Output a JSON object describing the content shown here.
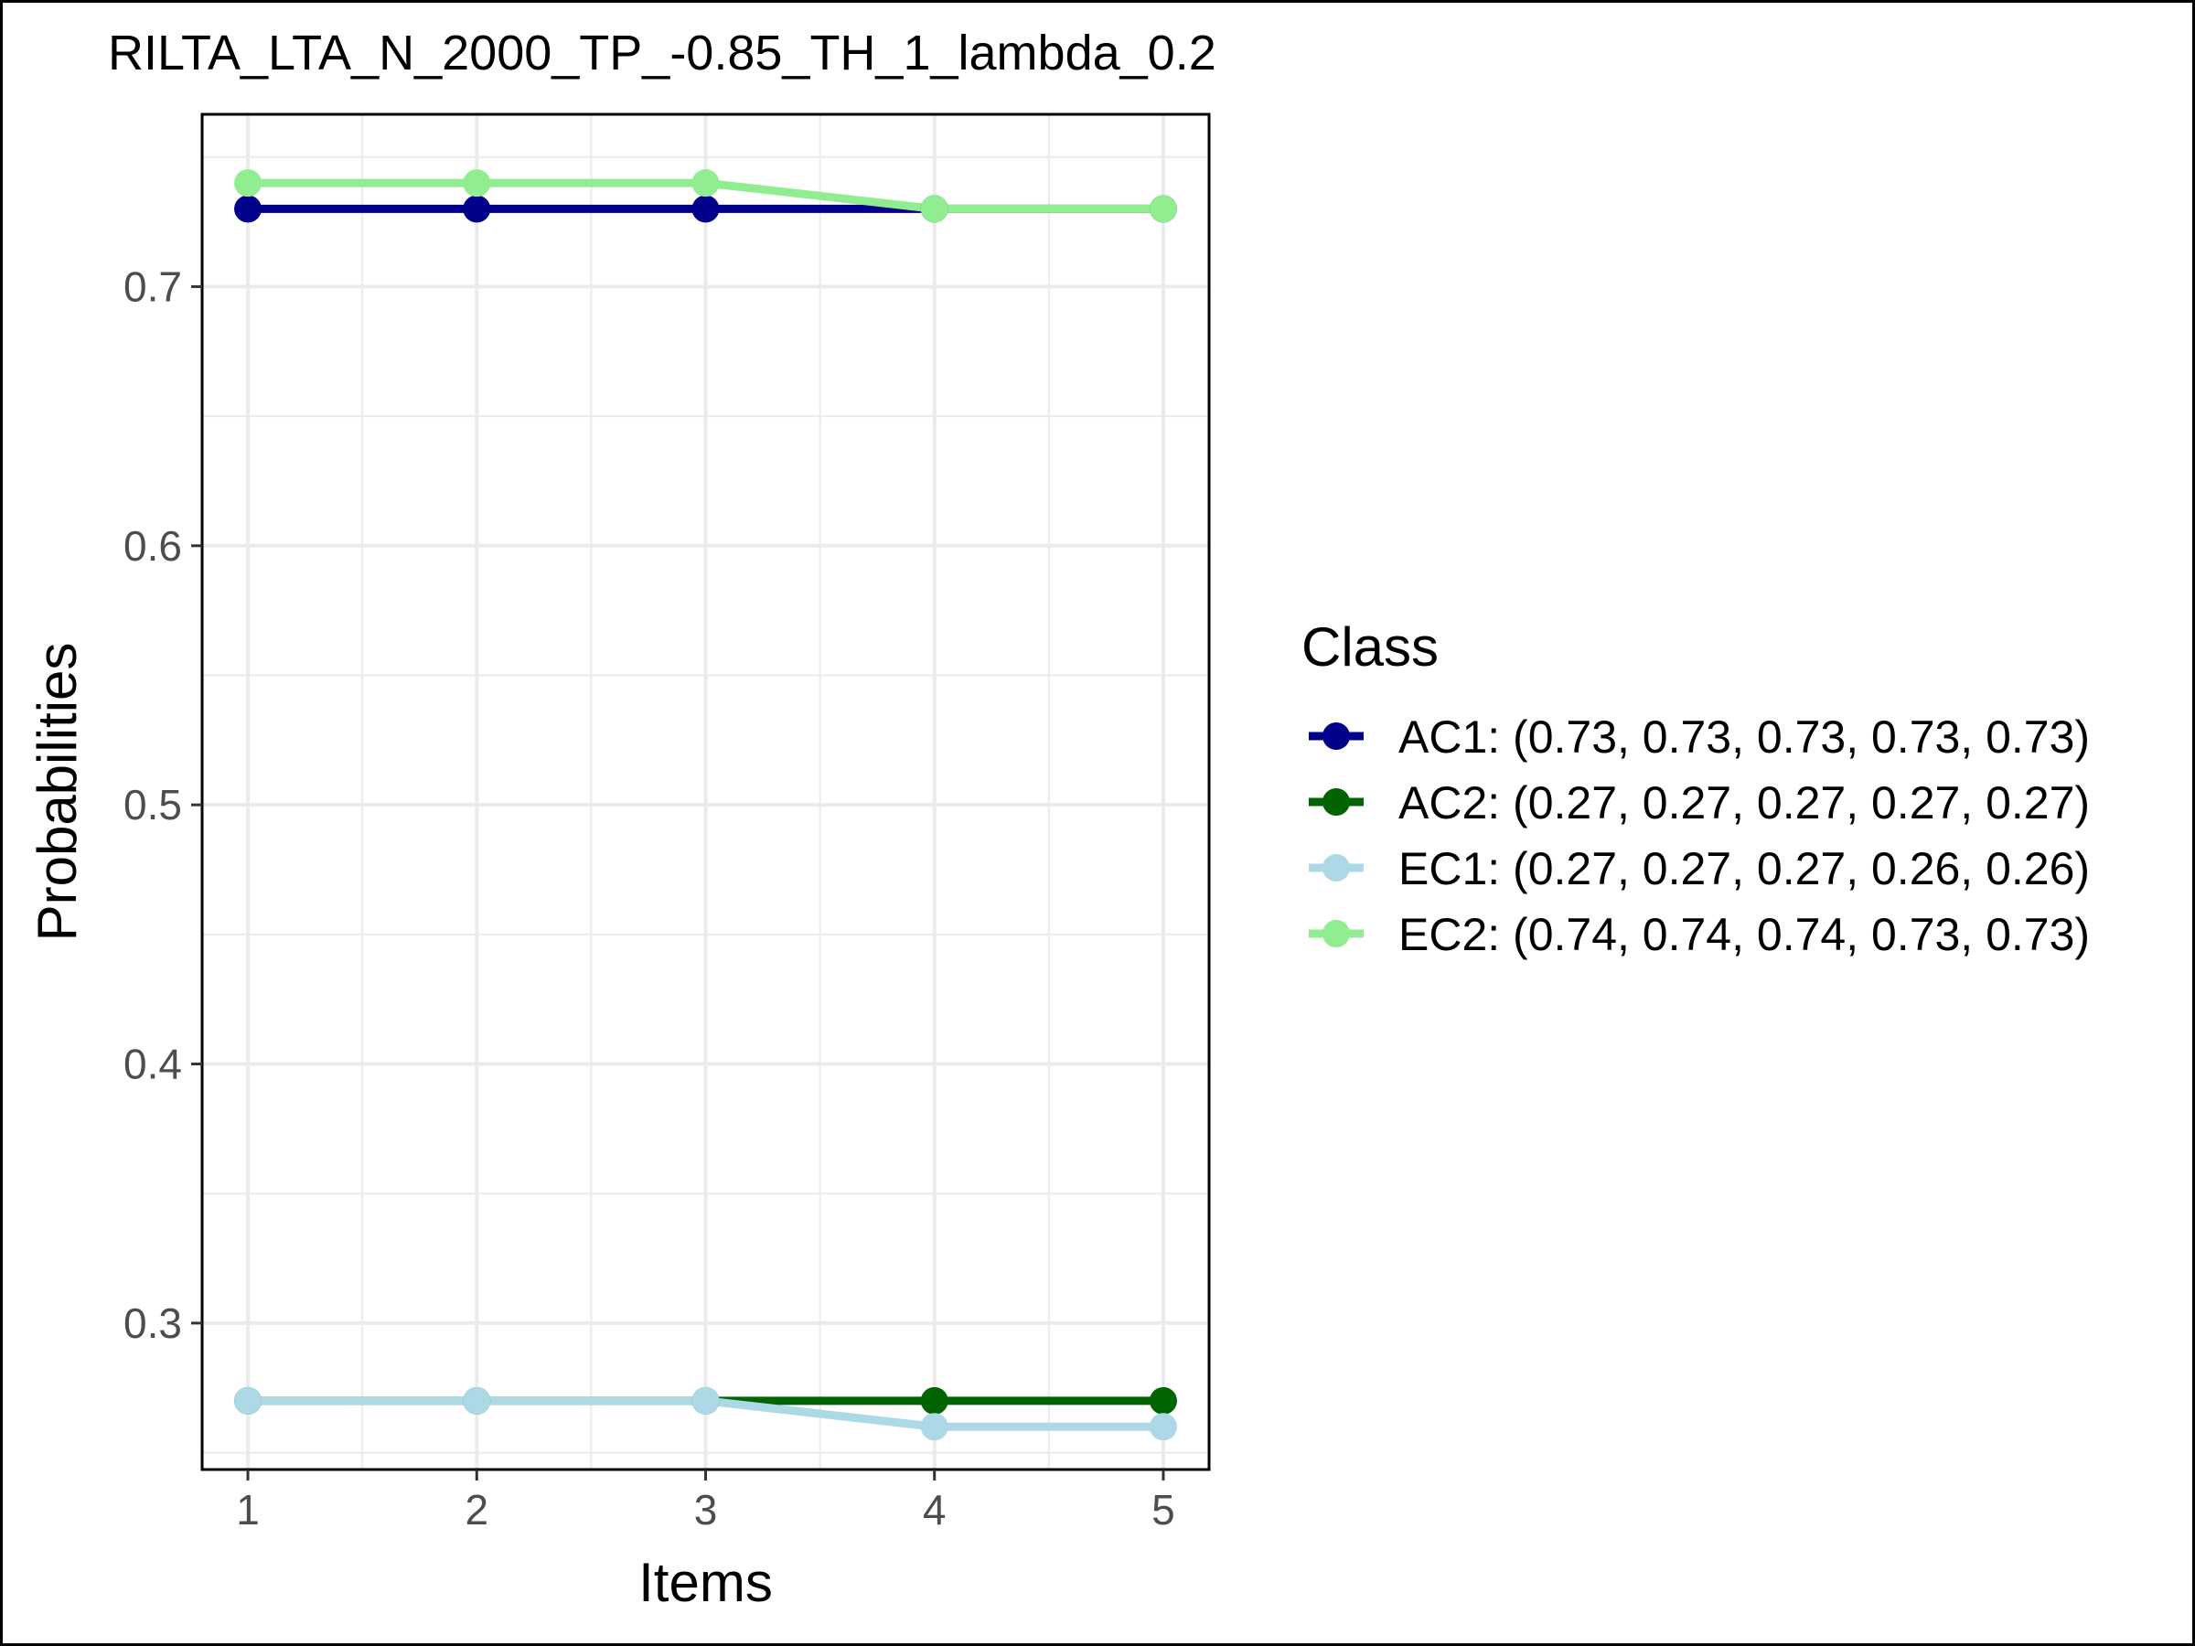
{
  "chart_data": {
    "type": "line",
    "title": "RILTA_LTA_N_2000_TP_-0.85_TH_1_lambda_0.2",
    "xlabel": "Items",
    "ylabel": "Probabilities",
    "x": [
      1,
      2,
      3,
      4,
      5
    ],
    "x_ticks": [
      "1",
      "2",
      "3",
      "4",
      "5"
    ],
    "xlim": [
      0.8,
      5.2
    ],
    "y_ticks": [
      "0.3",
      "0.4",
      "0.5",
      "0.6",
      "0.7"
    ],
    "ylim": [
      0.2435,
      0.7665
    ],
    "grid": true,
    "legend": {
      "title": "Class",
      "position": "right"
    },
    "series": [
      {
        "name": "AC1",
        "label": "AC1: (0.73, 0.73, 0.73, 0.73, 0.73)",
        "values": [
          0.73,
          0.73,
          0.73,
          0.73,
          0.73
        ],
        "color": "#00008b"
      },
      {
        "name": "AC2",
        "label": "AC2: (0.27, 0.27, 0.27, 0.27, 0.27)",
        "values": [
          0.27,
          0.27,
          0.27,
          0.27,
          0.27
        ],
        "color": "#006400"
      },
      {
        "name": "EC1",
        "label": "EC1: (0.27, 0.27, 0.27, 0.26, 0.26)",
        "values": [
          0.27,
          0.27,
          0.27,
          0.26,
          0.26
        ],
        "color": "#add8e6"
      },
      {
        "name": "EC2",
        "label": "EC2: (0.74, 0.74, 0.74, 0.73, 0.73)",
        "values": [
          0.74,
          0.74,
          0.74,
          0.73,
          0.73
        ],
        "color": "#90ee90"
      }
    ]
  }
}
